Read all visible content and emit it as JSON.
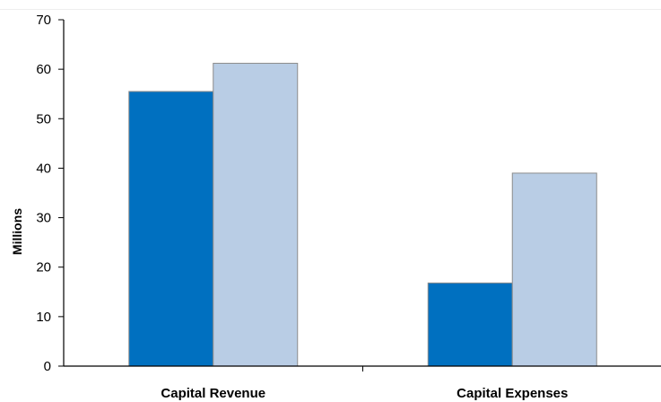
{
  "chart_data": {
    "type": "bar",
    "title": "",
    "xlabel": "",
    "ylabel": "Millions",
    "categories": [
      "Capital Revenue",
      "Capital Expenses"
    ],
    "series": [
      {
        "values": [
          55.5,
          16.8
        ],
        "color": "#0070C0"
      },
      {
        "values": [
          61.2,
          39.0
        ],
        "color": "#B9CDE5"
      }
    ],
    "ylim": [
      0,
      70
    ],
    "yticks": [
      0,
      10,
      20,
      30,
      40,
      50,
      60,
      70
    ],
    "grid": false,
    "legend": "none"
  }
}
